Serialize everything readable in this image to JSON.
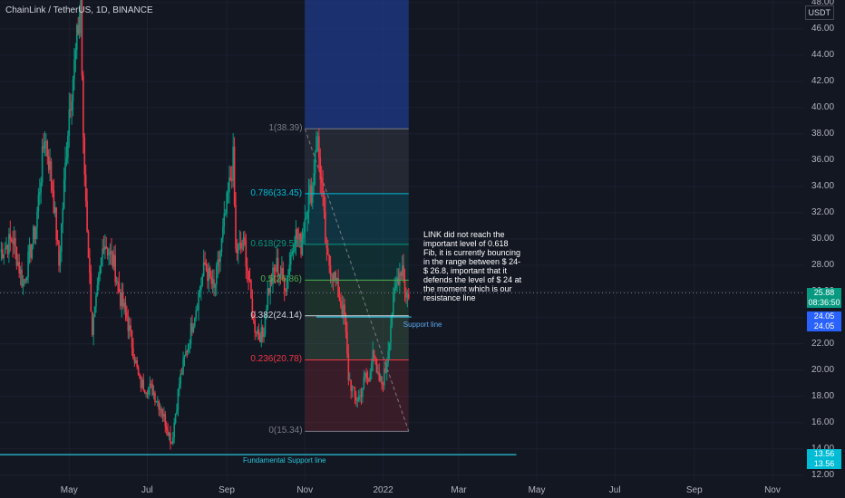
{
  "chart_data": {
    "type": "candlestick",
    "title": "ChainLink / TetherUS, 1D, BINANCE",
    "currency": "USDT",
    "ylim": [
      11.5,
      48.2
    ],
    "x_range": [
      "2021-03-08",
      "2021-12-31"
    ],
    "y_ticks": [
      12,
      14,
      16,
      18,
      20,
      22,
      24,
      26,
      28,
      30,
      32,
      34,
      36,
      38,
      40,
      42,
      44,
      46,
      48
    ],
    "y_tick_labels": [
      "12.00",
      "14.00",
      "16.00",
      "18.00",
      "20.00",
      "22.00",
      "24.00",
      "26.00",
      "28.00",
      "30.00",
      "32.00",
      "34.00",
      "36.00",
      "38.00",
      "40.00",
      "42.00",
      "44.00",
      "46.00",
      "48.00"
    ],
    "x_tick_labels": [
      "May",
      "Jul",
      "Sep",
      "Nov",
      "2022",
      "Mar",
      "May",
      "Jul",
      "Sep",
      "Nov"
    ],
    "x_tick_dates": [
      "2021-05-01",
      "2021-07-01",
      "2021-09-01",
      "2021-11-01",
      "2022-01-01",
      "2022-03-01",
      "2022-05-01",
      "2022-07-01",
      "2022-09-01",
      "2022-11-01"
    ],
    "price_path": [
      {
        "date": "2021-03-08",
        "close": 29.0
      },
      {
        "date": "2021-03-18",
        "close": 30.0
      },
      {
        "date": "2021-03-26",
        "close": 26.5
      },
      {
        "date": "2021-04-05",
        "close": 31.0
      },
      {
        "date": "2021-04-12",
        "close": 38.0
      },
      {
        "date": "2021-04-18",
        "close": 34.0
      },
      {
        "date": "2021-04-23",
        "close": 28.0
      },
      {
        "date": "2021-05-01",
        "close": 40.0
      },
      {
        "date": "2021-05-06",
        "close": 44.0
      },
      {
        "date": "2021-05-10",
        "close": 48.2
      },
      {
        "date": "2021-05-12",
        "close": 37.0
      },
      {
        "date": "2021-05-19",
        "close": 23.0
      },
      {
        "date": "2021-05-22",
        "close": 25.0
      },
      {
        "date": "2021-05-28",
        "close": 30.0
      },
      {
        "date": "2021-06-05",
        "close": 28.0
      },
      {
        "date": "2021-06-10",
        "close": 25.5
      },
      {
        "date": "2021-06-15",
        "close": 24.0
      },
      {
        "date": "2021-06-21",
        "close": 21.0
      },
      {
        "date": "2021-06-25",
        "close": 19.0
      },
      {
        "date": "2021-07-05",
        "close": 18.5
      },
      {
        "date": "2021-07-12",
        "close": 17.0
      },
      {
        "date": "2021-07-20",
        "close": 14.5
      },
      {
        "date": "2021-07-26",
        "close": 19.0
      },
      {
        "date": "2021-08-05",
        "close": 23.5
      },
      {
        "date": "2021-08-15",
        "close": 28.0
      },
      {
        "date": "2021-08-22",
        "close": 26.0
      },
      {
        "date": "2021-08-27",
        "close": 29.0
      },
      {
        "date": "2021-09-03",
        "close": 34.0
      },
      {
        "date": "2021-09-06",
        "close": 36.0
      },
      {
        "date": "2021-09-08",
        "close": 29.0
      },
      {
        "date": "2021-09-15",
        "close": 29.5
      },
      {
        "date": "2021-09-22",
        "close": 23.5
      },
      {
        "date": "2021-09-29",
        "close": 22.5
      },
      {
        "date": "2021-10-03",
        "close": 26.0
      },
      {
        "date": "2021-10-10",
        "close": 28.0
      },
      {
        "date": "2021-10-17",
        "close": 26.5
      },
      {
        "date": "2021-10-24",
        "close": 30.5
      },
      {
        "date": "2021-10-29",
        "close": 29.5
      },
      {
        "date": "2021-11-02",
        "close": 32.5
      },
      {
        "date": "2021-11-07",
        "close": 34.0
      },
      {
        "date": "2021-11-10",
        "close": 38.4
      },
      {
        "date": "2021-11-14",
        "close": 34.0
      },
      {
        "date": "2021-11-18",
        "close": 28.5
      },
      {
        "date": "2021-11-23",
        "close": 27.5
      },
      {
        "date": "2021-11-28",
        "close": 25.5
      },
      {
        "date": "2021-12-02",
        "close": 24.0
      },
      {
        "date": "2021-12-05",
        "close": 19.5
      },
      {
        "date": "2021-12-10",
        "close": 17.8
      },
      {
        "date": "2021-12-14",
        "close": 18.0
      },
      {
        "date": "2021-12-18",
        "close": 19.5
      },
      {
        "date": "2021-12-21",
        "close": 19.0
      },
      {
        "date": "2021-12-24",
        "close": 22.0
      },
      {
        "date": "2021-12-27",
        "close": 19.5
      },
      {
        "date": "2021-12-31",
        "close": 19.0
      },
      {
        "date": "2022-01-03",
        "close": 20.0
      },
      {
        "date": "2022-01-08",
        "close": 24.5
      },
      {
        "date": "2022-01-12",
        "close": 27.0
      },
      {
        "date": "2022-01-16",
        "close": 28.0
      },
      {
        "date": "2022-01-19",
        "close": 25.5
      },
      {
        "date": "2022-01-21",
        "close": 25.9
      }
    ],
    "fib": {
      "start_date": "2021-11-01",
      "end_date": "2022-01-21",
      "levels": [
        {
          "label": "1(38.39)",
          "price": 38.39,
          "color": "#787b86"
        },
        {
          "label": "0.786(33.45)",
          "price": 33.45,
          "color": "#00bcd4"
        },
        {
          "label": "0.618(29.58)",
          "price": 29.58,
          "color": "#089981"
        },
        {
          "label": "0.5(26.86)",
          "price": 26.86,
          "color": "#4caf50"
        },
        {
          "label": "0.382(24.14)",
          "price": 24.14,
          "color": "#d1d4dc"
        },
        {
          "label": "0.236(20.78)",
          "price": 20.78,
          "color": "#f23645"
        },
        {
          "label": "0(15.34)",
          "price": 15.34,
          "color": "#787b86"
        }
      ]
    },
    "blue_zone": {
      "start_date": "2021-11-01",
      "end_date": "2022-01-21",
      "from": 38.39,
      "to": 48.2
    },
    "support_line": {
      "price": 24.05,
      "label": "Support line"
    },
    "fundamental_support": {
      "price": 13.56,
      "label": "Fundamental Support line"
    },
    "price_tags": [
      {
        "text": "25.88",
        "price": 25.88,
        "color": "#089981"
      },
      {
        "text": "08:36:50",
        "price": 25.88,
        "color": "#089981",
        "below": true
      },
      {
        "text": "24.05",
        "price": 24.05,
        "color": "#2962ff"
      },
      {
        "text": "24.05",
        "price": 24.05,
        "color": "#2962ff",
        "below": true
      },
      {
        "text": "13.56",
        "price": 13.56,
        "color": "#00bcd4"
      },
      {
        "text": "13.56",
        "price": 13.56,
        "color": "#00bcd4",
        "below": true
      }
    ],
    "note": "LINK did not reach the important level of 0.618 Fib, it is currently bouncing in the range between $ 24- $ 26.8, important that it defends the level of $ 24 at the moment which is our resistance line"
  }
}
